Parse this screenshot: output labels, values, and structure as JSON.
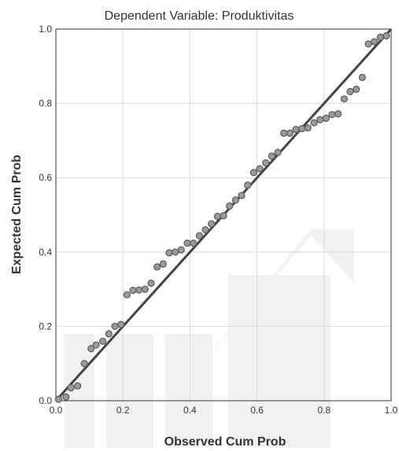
{
  "chart_data": {
    "type": "scatter",
    "title": "Dependent Variable: Produktivitas",
    "xlabel": "Observed Cum Prob",
    "ylabel": "Expected Cum Prob",
    "xlim": [
      0,
      1
    ],
    "ylim": [
      0,
      1
    ],
    "x_ticks": [
      "0.0",
      "0.2",
      "0.4",
      "0.6",
      "0.8",
      "1.0"
    ],
    "y_ticks": [
      "0.0",
      "0.2",
      "0.4",
      "0.6",
      "0.8",
      "1.0"
    ],
    "grid": true,
    "legend": "none",
    "reference_line": {
      "from": [
        0,
        0
      ],
      "to": [
        1,
        1
      ]
    },
    "colors": {
      "point_fill": "#9a9a9a",
      "point_stroke": "#5a5a5a",
      "reference_line": "#444444",
      "grid": "#d8d8d8",
      "axis": "#333333",
      "watermark": "#f1f1f1"
    },
    "points": [
      [
        0.008,
        0.004
      ],
      [
        0.03,
        0.01
      ],
      [
        0.045,
        0.035
      ],
      [
        0.065,
        0.04
      ],
      [
        0.085,
        0.1
      ],
      [
        0.105,
        0.14
      ],
      [
        0.12,
        0.15
      ],
      [
        0.14,
        0.16
      ],
      [
        0.158,
        0.18
      ],
      [
        0.176,
        0.2
      ],
      [
        0.194,
        0.205
      ],
      [
        0.212,
        0.285
      ],
      [
        0.23,
        0.297
      ],
      [
        0.248,
        0.298
      ],
      [
        0.266,
        0.3
      ],
      [
        0.284,
        0.316
      ],
      [
        0.302,
        0.36
      ],
      [
        0.32,
        0.368
      ],
      [
        0.338,
        0.398
      ],
      [
        0.356,
        0.4
      ],
      [
        0.374,
        0.406
      ],
      [
        0.392,
        0.424
      ],
      [
        0.41,
        0.424
      ],
      [
        0.428,
        0.444
      ],
      [
        0.446,
        0.46
      ],
      [
        0.464,
        0.476
      ],
      [
        0.482,
        0.496
      ],
      [
        0.5,
        0.498
      ],
      [
        0.518,
        0.524
      ],
      [
        0.536,
        0.54
      ],
      [
        0.554,
        0.552
      ],
      [
        0.572,
        0.58
      ],
      [
        0.59,
        0.614
      ],
      [
        0.608,
        0.624
      ],
      [
        0.626,
        0.64
      ],
      [
        0.644,
        0.658
      ],
      [
        0.662,
        0.668
      ],
      [
        0.68,
        0.72
      ],
      [
        0.698,
        0.72
      ],
      [
        0.716,
        0.73
      ],
      [
        0.734,
        0.732
      ],
      [
        0.752,
        0.734
      ],
      [
        0.77,
        0.748
      ],
      [
        0.788,
        0.756
      ],
      [
        0.806,
        0.76
      ],
      [
        0.824,
        0.77
      ],
      [
        0.842,
        0.772
      ],
      [
        0.86,
        0.812
      ],
      [
        0.878,
        0.832
      ],
      [
        0.896,
        0.838
      ],
      [
        0.914,
        0.87
      ],
      [
        0.932,
        0.96
      ],
      [
        0.95,
        0.966
      ],
      [
        0.968,
        0.978
      ],
      [
        0.986,
        0.982
      ]
    ]
  }
}
